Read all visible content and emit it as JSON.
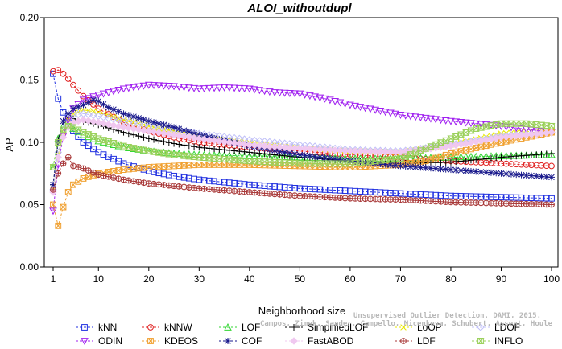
{
  "chart_data": {
    "type": "line",
    "title": "ALOI_withoutdupl",
    "xlabel": "Neighborhood size",
    "ylabel": "AP",
    "xlim": [
      1,
      100
    ],
    "ylim": [
      0.0,
      0.2
    ],
    "x_ticks": [
      1,
      10,
      20,
      30,
      40,
      50,
      60,
      70,
      80,
      90,
      100
    ],
    "x_tick_labels": [
      "1",
      "10",
      "20",
      "30",
      "40",
      "50",
      "60",
      "70",
      "80",
      "90",
      "100"
    ],
    "y_ticks": [
      0.0,
      0.05,
      0.1,
      0.15,
      0.2
    ],
    "y_tick_labels": [
      "0.00",
      "0.05",
      "0.10",
      "0.15",
      "0.20"
    ],
    "grid": false,
    "legend_position": "bottom",
    "series": [
      {
        "name": "kNN",
        "color": "#1f2fe0",
        "marker": "square",
        "points": [
          [
            1,
            0.155
          ],
          [
            2,
            0.135
          ],
          [
            3,
            0.124
          ],
          [
            4,
            0.116
          ],
          [
            5,
            0.109
          ],
          [
            7,
            0.1
          ],
          [
            10,
            0.092
          ],
          [
            15,
            0.083
          ],
          [
            20,
            0.077
          ],
          [
            25,
            0.073
          ],
          [
            30,
            0.07
          ],
          [
            40,
            0.066
          ],
          [
            50,
            0.063
          ],
          [
            60,
            0.061
          ],
          [
            70,
            0.059
          ],
          [
            80,
            0.057
          ],
          [
            90,
            0.056
          ],
          [
            100,
            0.055
          ]
        ]
      },
      {
        "name": "kNNW",
        "color": "#e02020",
        "marker": "circle",
        "points": [
          [
            1,
            0.157
          ],
          [
            2,
            0.158
          ],
          [
            3,
            0.155
          ],
          [
            4,
            0.151
          ],
          [
            5,
            0.146
          ],
          [
            7,
            0.137
          ],
          [
            10,
            0.127
          ],
          [
            15,
            0.116
          ],
          [
            20,
            0.109
          ],
          [
            25,
            0.104
          ],
          [
            30,
            0.1
          ],
          [
            40,
            0.096
          ],
          [
            50,
            0.093
          ],
          [
            60,
            0.09
          ],
          [
            70,
            0.088
          ],
          [
            80,
            0.085
          ],
          [
            90,
            0.083
          ],
          [
            100,
            0.081
          ]
        ]
      },
      {
        "name": "LOF",
        "color": "#33d633",
        "marker": "triangle-up",
        "points": [
          [
            1,
            0.08
          ],
          [
            2,
            0.103
          ],
          [
            3,
            0.113
          ],
          [
            4,
            0.113
          ],
          [
            5,
            0.111
          ],
          [
            7,
            0.106
          ],
          [
            10,
            0.101
          ],
          [
            15,
            0.096
          ],
          [
            20,
            0.093
          ],
          [
            25,
            0.091
          ],
          [
            30,
            0.09
          ],
          [
            40,
            0.089
          ],
          [
            50,
            0.088
          ],
          [
            60,
            0.087
          ],
          [
            70,
            0.087
          ],
          [
            80,
            0.088
          ],
          [
            90,
            0.089
          ],
          [
            100,
            0.09
          ]
        ]
      },
      {
        "name": "SimplifiedLOF",
        "color": "#000000",
        "marker": "plus",
        "points": [
          [
            1,
            0.066
          ],
          [
            2,
            0.102
          ],
          [
            3,
            0.117
          ],
          [
            4,
            0.12
          ],
          [
            5,
            0.119
          ],
          [
            7,
            0.117
          ],
          [
            10,
            0.114
          ],
          [
            15,
            0.108
          ],
          [
            20,
            0.103
          ],
          [
            25,
            0.099
          ],
          [
            30,
            0.096
          ],
          [
            40,
            0.092
          ],
          [
            50,
            0.088
          ],
          [
            60,
            0.085
          ],
          [
            70,
            0.083
          ],
          [
            80,
            0.084
          ],
          [
            90,
            0.088
          ],
          [
            100,
            0.091
          ]
        ]
      },
      {
        "name": "LoOP",
        "color": "#e8e800",
        "marker": "x",
        "points": [
          [
            1,
            0.062
          ],
          [
            2,
            0.09
          ],
          [
            3,
            0.108
          ],
          [
            4,
            0.118
          ],
          [
            5,
            0.123
          ],
          [
            7,
            0.126
          ],
          [
            10,
            0.124
          ],
          [
            15,
            0.118
          ],
          [
            20,
            0.113
          ],
          [
            25,
            0.109
          ],
          [
            30,
            0.105
          ],
          [
            40,
            0.1
          ],
          [
            50,
            0.096
          ],
          [
            60,
            0.093
          ],
          [
            70,
            0.092
          ],
          [
            80,
            0.098
          ],
          [
            90,
            0.107
          ],
          [
            100,
            0.11
          ]
        ]
      },
      {
        "name": "LDOF",
        "color": "#c0c0f8",
        "marker": "diamond",
        "points": [
          [
            1,
            0.062
          ],
          [
            2,
            0.092
          ],
          [
            3,
            0.11
          ],
          [
            4,
            0.119
          ],
          [
            5,
            0.122
          ],
          [
            7,
            0.123
          ],
          [
            10,
            0.121
          ],
          [
            15,
            0.117
          ],
          [
            20,
            0.113
          ],
          [
            25,
            0.11
          ],
          [
            30,
            0.107
          ],
          [
            40,
            0.102
          ],
          [
            50,
            0.098
          ],
          [
            60,
            0.094
          ],
          [
            70,
            0.093
          ],
          [
            80,
            0.098
          ],
          [
            90,
            0.105
          ],
          [
            100,
            0.108
          ]
        ]
      },
      {
        "name": "ODIN",
        "color": "#a020f0",
        "marker": "triangle-down",
        "points": [
          [
            1,
            0.045
          ],
          [
            2,
            0.082
          ],
          [
            3,
            0.105
          ],
          [
            4,
            0.118
          ],
          [
            5,
            0.127
          ],
          [
            7,
            0.134
          ],
          [
            10,
            0.138
          ],
          [
            15,
            0.143
          ],
          [
            20,
            0.146
          ],
          [
            25,
            0.145
          ],
          [
            30,
            0.143
          ],
          [
            35,
            0.144
          ],
          [
            40,
            0.143
          ],
          [
            45,
            0.14
          ],
          [
            50,
            0.139
          ],
          [
            55,
            0.135
          ],
          [
            60,
            0.13
          ],
          [
            65,
            0.126
          ],
          [
            70,
            0.122
          ],
          [
            80,
            0.117
          ],
          [
            90,
            0.113
          ],
          [
            100,
            0.108
          ]
        ]
      },
      {
        "name": "KDEOS",
        "color": "#f0a030",
        "marker": "boxed-x",
        "points": [
          [
            1,
            0.05
          ],
          [
            2,
            0.033
          ],
          [
            3,
            0.048
          ],
          [
            4,
            0.06
          ],
          [
            5,
            0.066
          ],
          [
            7,
            0.071
          ],
          [
            10,
            0.075
          ],
          [
            15,
            0.078
          ],
          [
            20,
            0.08
          ],
          [
            25,
            0.081
          ],
          [
            30,
            0.082
          ],
          [
            40,
            0.082
          ],
          [
            50,
            0.081
          ],
          [
            60,
            0.08
          ],
          [
            70,
            0.082
          ],
          [
            75,
            0.085
          ],
          [
            80,
            0.091
          ],
          [
            90,
            0.1
          ],
          [
            100,
            0.108
          ]
        ]
      },
      {
        "name": "COF",
        "color": "#1a1a8c",
        "marker": "star",
        "points": [
          [
            1,
            0.066
          ],
          [
            2,
            0.1
          ],
          [
            3,
            0.117
          ],
          [
            4,
            0.123
          ],
          [
            5,
            0.127
          ],
          [
            7,
            0.13
          ],
          [
            9,
            0.134
          ],
          [
            10,
            0.133
          ],
          [
            12,
            0.128
          ],
          [
            15,
            0.123
          ],
          [
            20,
            0.117
          ],
          [
            25,
            0.112
          ],
          [
            30,
            0.106
          ],
          [
            40,
            0.097
          ],
          [
            50,
            0.09
          ],
          [
            60,
            0.085
          ],
          [
            70,
            0.081
          ],
          [
            80,
            0.078
          ],
          [
            90,
            0.075
          ],
          [
            100,
            0.072
          ]
        ]
      },
      {
        "name": "FastABOD",
        "color": "#f0c8f0",
        "marker": "diamond-filled",
        "points": [
          [
            1,
            0.06
          ],
          [
            2,
            0.088
          ],
          [
            3,
            0.104
          ],
          [
            4,
            0.112
          ],
          [
            5,
            0.116
          ],
          [
            7,
            0.118
          ],
          [
            10,
            0.116
          ],
          [
            15,
            0.112
          ],
          [
            20,
            0.109
          ],
          [
            25,
            0.106
          ],
          [
            30,
            0.103
          ],
          [
            40,
            0.098
          ],
          [
            50,
            0.095
          ],
          [
            60,
            0.093
          ],
          [
            70,
            0.092
          ],
          [
            80,
            0.097
          ],
          [
            90,
            0.104
          ],
          [
            100,
            0.108
          ]
        ]
      },
      {
        "name": "LDF",
        "color": "#a83838",
        "marker": "circle-cross",
        "points": [
          [
            1,
            0.062
          ],
          [
            2,
            0.075
          ],
          [
            3,
            0.083
          ],
          [
            4,
            0.088
          ],
          [
            5,
            0.081
          ],
          [
            7,
            0.079
          ],
          [
            10,
            0.074
          ],
          [
            15,
            0.07
          ],
          [
            20,
            0.067
          ],
          [
            25,
            0.065
          ],
          [
            30,
            0.063
          ],
          [
            40,
            0.06
          ],
          [
            50,
            0.057
          ],
          [
            60,
            0.055
          ],
          [
            70,
            0.054
          ],
          [
            80,
            0.052
          ],
          [
            90,
            0.051
          ],
          [
            100,
            0.05
          ]
        ]
      },
      {
        "name": "INFLO",
        "color": "#9ad05a",
        "marker": "hourglass",
        "points": [
          [
            1,
            0.08
          ],
          [
            2,
            0.1
          ],
          [
            3,
            0.11
          ],
          [
            4,
            0.113
          ],
          [
            5,
            0.112
          ],
          [
            7,
            0.108
          ],
          [
            10,
            0.103
          ],
          [
            15,
            0.097
          ],
          [
            20,
            0.093
          ],
          [
            25,
            0.09
          ],
          [
            30,
            0.088
          ],
          [
            40,
            0.085
          ],
          [
            50,
            0.083
          ],
          [
            60,
            0.083
          ],
          [
            70,
            0.087
          ],
          [
            80,
            0.103
          ],
          [
            85,
            0.111
          ],
          [
            90,
            0.115
          ],
          [
            95,
            0.115
          ],
          [
            100,
            0.113
          ]
        ]
      }
    ],
    "legend_order": [
      "kNN",
      "kNNW",
      "LOF",
      "SimplifiedLOF",
      "LoOP",
      "LDOF",
      "ODIN",
      "KDEOS",
      "COF",
      "FastABOD",
      "LDF",
      "INFLO"
    ],
    "watermark_lines": [
      "Unsupervised Outlier Detection. DAMI, 2015.",
      "Campos, Zimek, Sander, Campello, Micenkova, Schubert, Assent, Houle"
    ]
  }
}
